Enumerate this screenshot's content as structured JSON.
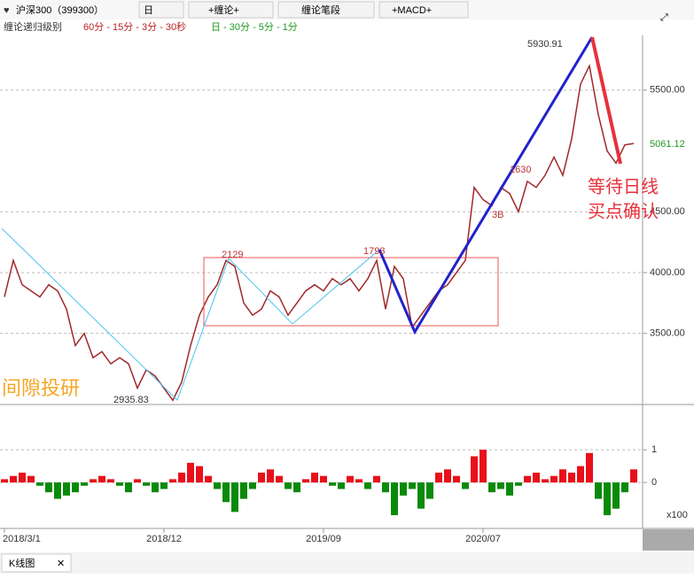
{
  "toolbar": {
    "symbol": "沪深300（399300）",
    "period": "日",
    "chan": "+缠论+",
    "segment": "缠论笔段",
    "macd": "+MACD+",
    "level_label": "缠论递归级别",
    "levels_minute": "60分 - 15分 - 3分 - 30秒",
    "levels_day": "日 - 30分 - 5分 - 1分"
  },
  "watermark": "间隙投研",
  "note": [
    "等待日线",
    "买点确认"
  ],
  "tab": {
    "label": "K线图",
    "close": "✕"
  },
  "chart_data": [
    {
      "type": "line",
      "categories": [
        "2018/3/1",
        null,
        null,
        null,
        null,
        null,
        null,
        null,
        null,
        null,
        null,
        null,
        null,
        null,
        null,
        null,
        null,
        null,
        "2018/12",
        null,
        null,
        null,
        null,
        null,
        null,
        null,
        null,
        null,
        null,
        null,
        null,
        null,
        null,
        null,
        null,
        null,
        "2019/09",
        null,
        null,
        null,
        null,
        null,
        null,
        null,
        null,
        null,
        null,
        null,
        null,
        null,
        null,
        null,
        null,
        null,
        "2020/07",
        null,
        null,
        null,
        null,
        null,
        null,
        null,
        null,
        null,
        null,
        null,
        null,
        null,
        null,
        null,
        null,
        null
      ],
      "series": [
        {
          "color": "#a0282a",
          "values": [
            3800,
            4100,
            3900,
            3850,
            3800,
            3900,
            3850,
            3700,
            3400,
            3500,
            3300,
            3350,
            3250,
            3300,
            3250,
            3050,
            3200,
            3150,
            3050,
            2950,
            3100,
            3400,
            3650,
            3800,
            3900,
            4100,
            4050,
            3750,
            3650,
            3700,
            3850,
            3800,
            3650,
            3750,
            3850,
            3900,
            3850,
            3950,
            3900,
            3950,
            3850,
            3950,
            4100,
            3700,
            4050,
            3950,
            3550,
            3650,
            3750,
            3850,
            3900,
            4000,
            4100,
            4700,
            4600,
            4550,
            4700,
            4650,
            4500,
            4750,
            4700,
            4800,
            4950,
            4800,
            5100,
            5550,
            5700,
            5300,
            5000,
            4900,
            5050,
            5061.12
          ]
        }
      ],
      "ylim": [
        2930,
        5950
      ],
      "yticks": [
        {
          "value": 3500,
          "label": "3500.00"
        },
        {
          "value": 4000,
          "label": "4000.00"
        },
        {
          "value": 4500,
          "label": "4500.00"
        },
        {
          "value": 5500,
          "label": "5500.00"
        }
      ],
      "annotations": [
        "5930.91",
        "2935.83",
        "2129",
        "1793",
        "1630",
        "3B",
        "5061.12"
      ]
    },
    {
      "type": "bar",
      "series": [
        {
          "values": [
            0.1,
            0.2,
            0.3,
            0.2,
            -0.1,
            -0.3,
            -0.5,
            -0.4,
            -0.3,
            -0.1,
            0.1,
            0.2,
            0.1,
            -0.1,
            -0.3,
            0.1,
            -0.1,
            -0.3,
            -0.2,
            0.1,
            0.3,
            0.6,
            0.5,
            0.2,
            -0.2,
            -0.6,
            -0.9,
            -0.5,
            -0.2,
            0.3,
            0.4,
            0.2,
            -0.2,
            -0.3,
            0.1,
            0.3,
            0.2,
            -0.1,
            -0.2,
            0.2,
            0.1,
            -0.2,
            0.2,
            -0.3,
            -1.0,
            -0.4,
            -0.2,
            -0.8,
            -0.5,
            0.3,
            0.4,
            0.2,
            -0.2,
            0.8,
            1.0,
            -0.3,
            -0.2,
            -0.4,
            -0.1,
            0.2,
            0.3,
            0.1,
            0.2,
            0.4,
            0.3,
            0.5,
            0.9,
            -0.5,
            -1.0,
            -0.8,
            -0.3,
            0.4
          ]
        }
      ],
      "colors": {
        "up": "#e8101a",
        "down": "#0a8a0a"
      },
      "ylim": [
        -1.35,
        2.3
      ],
      "yticks": [
        1,
        0
      ],
      "unit": "x100"
    }
  ]
}
